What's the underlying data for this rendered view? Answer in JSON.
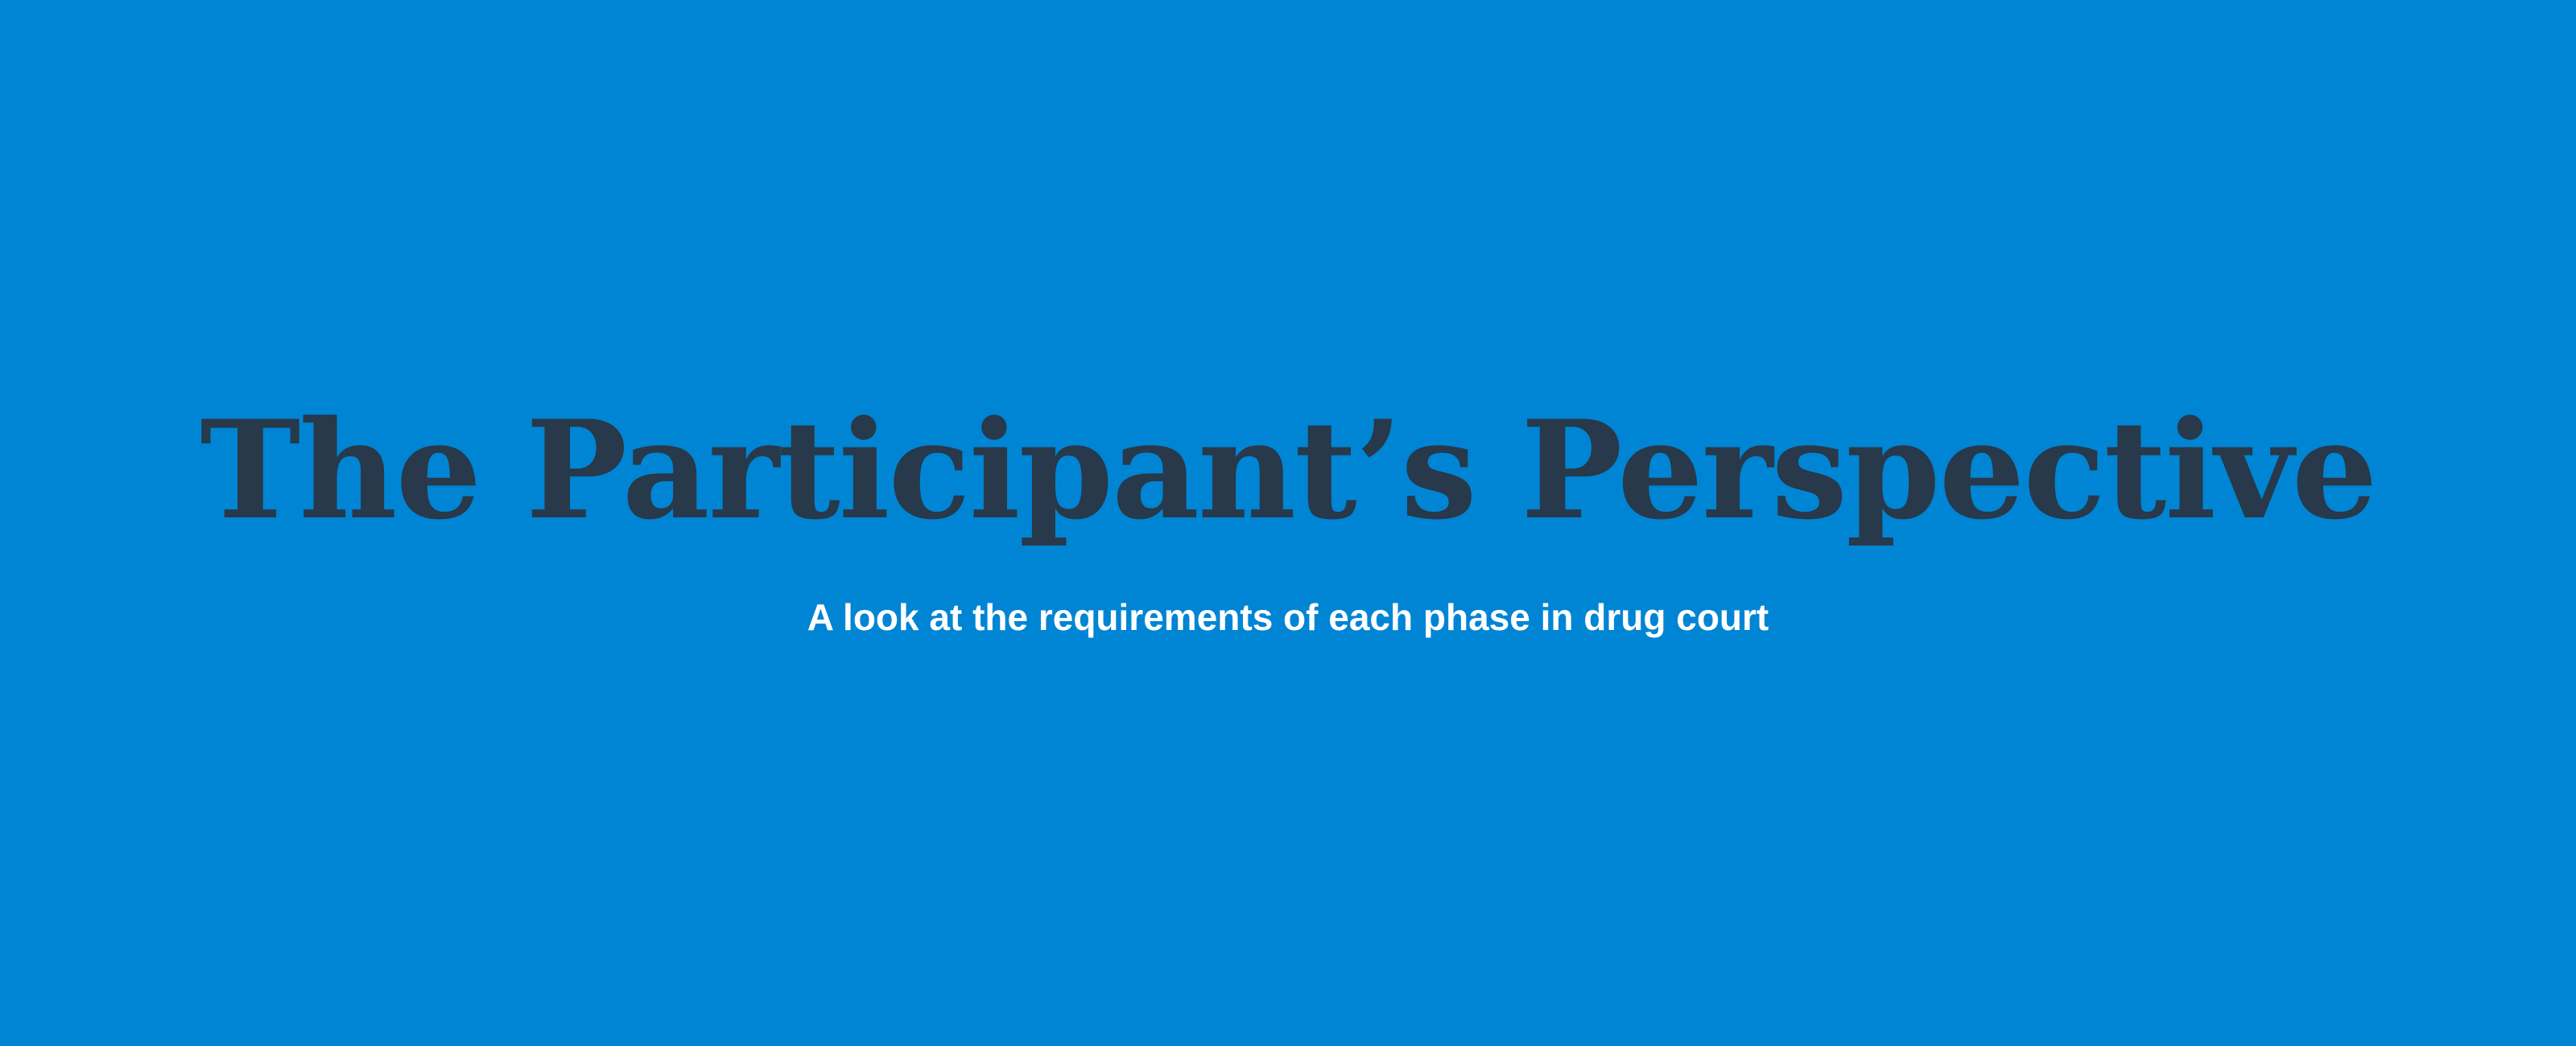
{
  "hero": {
    "title": "The Participant’s Perspective",
    "subtitle": "A look at the requirements of each phase in drug court"
  },
  "colors": {
    "background": "#0085d4",
    "title": "#27394a",
    "subtitle": "#ffffff"
  }
}
